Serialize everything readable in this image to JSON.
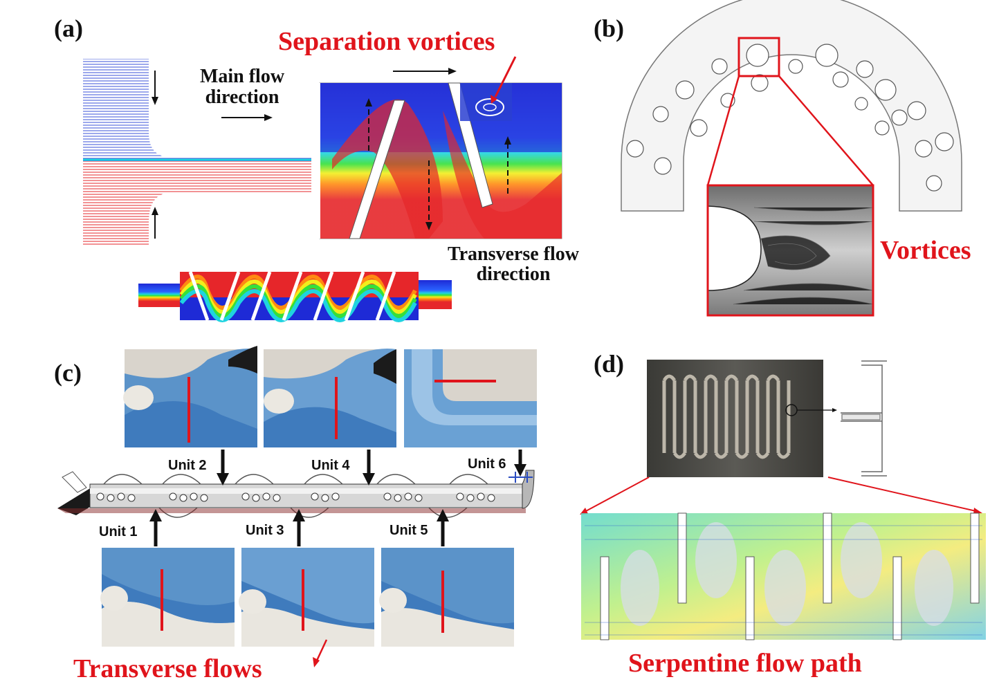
{
  "panels": {
    "a": {
      "label": "(a)",
      "main_flow_line1": "Main flow",
      "main_flow_line2": "direction",
      "separation_vortices": "Separation vortices",
      "transverse_line1": "Transverse flow",
      "transverse_line2": "direction"
    },
    "b": {
      "label": "(b)",
      "vortices": "Vortices"
    },
    "c": {
      "label": "(c)",
      "units": [
        "Unit 1",
        "Unit 2",
        "Unit 3",
        "Unit 4",
        "Unit 5",
        "Unit 6"
      ],
      "transverse_flows": "Transverse flows"
    },
    "d": {
      "label": "(d)",
      "serpentine": "Serpentine flow path"
    }
  },
  "colors": {
    "annotation_red": "#e0141b",
    "flow_blue": "#2a3fd1",
    "flow_red": "#e6262a",
    "dye_blue": "#5b93c9"
  }
}
